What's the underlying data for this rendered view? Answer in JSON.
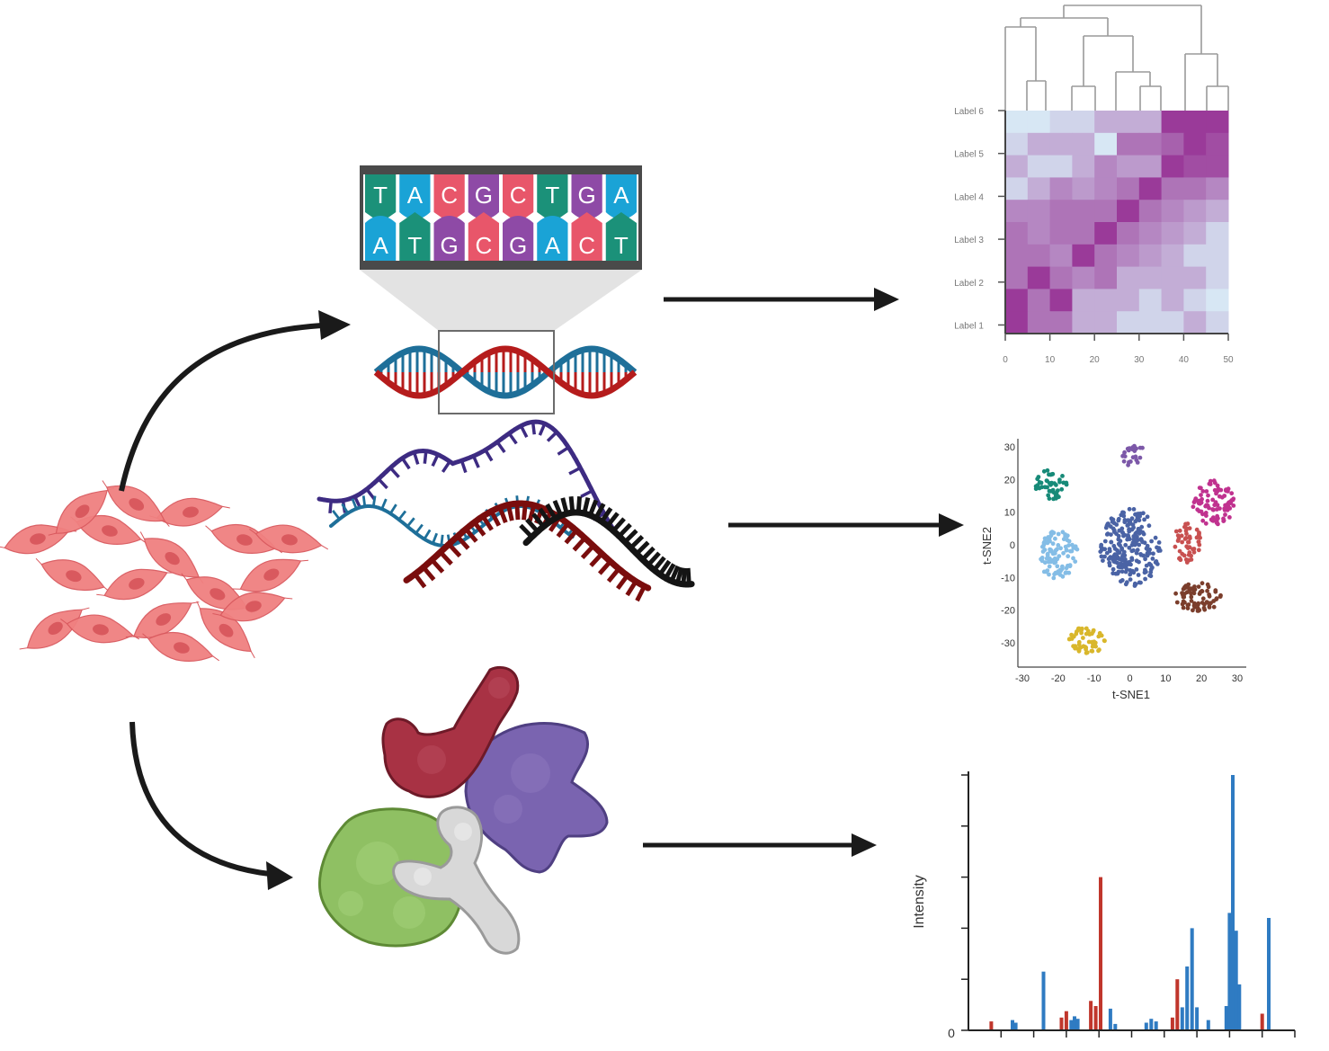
{
  "colors": {
    "arrow": "#1a1a1a",
    "cell_fill": "#f08080",
    "cell_stroke": "#d9595e",
    "cell_nucleus": "#d9595e",
    "base_A": "#1aa3d6",
    "base_T": "#1b9179",
    "base_G": "#8e4aa6",
    "base_C": "#e8566a",
    "dna_red": "#b51c1c",
    "dna_blue": "#1e6f99",
    "rna_purple": "#3d2b82",
    "rna_teal": "#1e6f99",
    "rna_darkred": "#7a0d0d",
    "rna_black": "#141414",
    "protein_red": "#a83244",
    "protein_purple": "#7a64b0",
    "protein_green": "#8fc063",
    "protein_gray": "#d8d8d8",
    "heat_low": "#d7e7f4",
    "heat_high": "#93278f",
    "ms_blue": "#2f7bc2",
    "ms_red": "#c0362c"
  },
  "icons": [
    "cell-culture-icon",
    "dna-sequence-icon",
    "dna-helix-icon",
    "rna-strands-icon",
    "protein-complex-icon"
  ],
  "dna_sequence": {
    "top": [
      "T",
      "A",
      "C",
      "G",
      "C",
      "T",
      "G",
      "A"
    ],
    "bottom": [
      "A",
      "T",
      "G",
      "C",
      "G",
      "A",
      "C",
      "T"
    ]
  },
  "heatmap": {
    "row_labels": [
      "Label 6",
      "Label 5",
      "Label 4",
      "Label 3",
      "Label 2",
      "Label 1"
    ],
    "x_ticks": [
      "0",
      "10",
      "20",
      "30",
      "40",
      "50"
    ],
    "values": [
      [
        0.0,
        0.0,
        0.1,
        0.1,
        0.3,
        0.3,
        0.3,
        0.9,
        0.9,
        0.9
      ],
      [
        0.1,
        0.3,
        0.3,
        0.3,
        0.0,
        0.6,
        0.6,
        0.7,
        0.9,
        0.8
      ],
      [
        0.3,
        0.1,
        0.1,
        0.3,
        0.5,
        0.4,
        0.4,
        0.9,
        0.8,
        0.8
      ],
      [
        0.1,
        0.3,
        0.5,
        0.4,
        0.5,
        0.6,
        0.9,
        0.6,
        0.6,
        0.5
      ],
      [
        0.5,
        0.5,
        0.6,
        0.6,
        0.6,
        0.9,
        0.6,
        0.5,
        0.4,
        0.3
      ],
      [
        0.6,
        0.5,
        0.6,
        0.6,
        0.9,
        0.6,
        0.5,
        0.4,
        0.3,
        0.1
      ],
      [
        0.6,
        0.6,
        0.5,
        0.9,
        0.6,
        0.5,
        0.4,
        0.3,
        0.1,
        0.1
      ],
      [
        0.6,
        0.9,
        0.6,
        0.5,
        0.6,
        0.3,
        0.3,
        0.3,
        0.3,
        0.1
      ],
      [
        0.9,
        0.6,
        0.9,
        0.3,
        0.3,
        0.3,
        0.1,
        0.3,
        0.1,
        0.0
      ],
      [
        0.9,
        0.6,
        0.6,
        0.3,
        0.3,
        0.1,
        0.1,
        0.1,
        0.3,
        0.1
      ]
    ]
  },
  "tsne": {
    "xlabel": "t-SNE1",
    "ylabel": "t-SNE2",
    "x_ticks": [
      "-30",
      "-20",
      "-10",
      "0",
      "10",
      "20",
      "30"
    ],
    "y_ticks": [
      "30",
      "20",
      "10",
      "0",
      "-10",
      "-20",
      "-30"
    ],
    "clusters": [
      {
        "color": "#178a78",
        "cx": -22,
        "cy": 18.5,
        "rx": 4.5,
        "ry": 4.5,
        "n": 45
      },
      {
        "color": "#7c58a8",
        "cx": 1.5,
        "cy": 27,
        "rx": 3.5,
        "ry": 3.5,
        "n": 25
      },
      {
        "color": "#c0328f",
        "cx": 23.5,
        "cy": 13,
        "rx": 6,
        "ry": 7,
        "n": 90
      },
      {
        "color": "#c85050",
        "cx": 16,
        "cy": 0.5,
        "rx": 4,
        "ry": 6,
        "n": 55
      },
      {
        "color": "#7b3e2c",
        "cx": 19,
        "cy": -16,
        "rx": 6.5,
        "ry": 4.5,
        "n": 70
      },
      {
        "color": "#84bde6",
        "cx": -20,
        "cy": -3,
        "rx": 5.5,
        "ry": 7.5,
        "n": 100
      },
      {
        "color": "#d9b72b",
        "cx": -12,
        "cy": -29,
        "rx": 5,
        "ry": 4.5,
        "n": 55
      },
      {
        "color": "#4a63a5",
        "cx": 0,
        "cy": -1,
        "rx": 8.5,
        "ry": 12,
        "n": 230
      }
    ]
  },
  "mass_spec": {
    "ylabel": "Intensity",
    "y_zero_label": "0",
    "peaks": [
      {
        "x": 0.07,
        "h": 0.035,
        "c": "red"
      },
      {
        "x": 0.135,
        "h": 0.04,
        "c": "blue"
      },
      {
        "x": 0.145,
        "h": 0.03,
        "c": "blue"
      },
      {
        "x": 0.23,
        "h": 0.23,
        "c": "blue"
      },
      {
        "x": 0.285,
        "h": 0.05,
        "c": "red"
      },
      {
        "x": 0.3,
        "h": 0.075,
        "c": "red"
      },
      {
        "x": 0.315,
        "h": 0.04,
        "c": "blue"
      },
      {
        "x": 0.325,
        "h": 0.055,
        "c": "blue"
      },
      {
        "x": 0.335,
        "h": 0.045,
        "c": "blue"
      },
      {
        "x": 0.375,
        "h": 0.115,
        "c": "red"
      },
      {
        "x": 0.39,
        "h": 0.095,
        "c": "red"
      },
      {
        "x": 0.405,
        "h": 0.6,
        "c": "red"
      },
      {
        "x": 0.435,
        "h": 0.085,
        "c": "blue"
      },
      {
        "x": 0.45,
        "h": 0.025,
        "c": "blue"
      },
      {
        "x": 0.545,
        "h": 0.03,
        "c": "blue"
      },
      {
        "x": 0.56,
        "h": 0.045,
        "c": "blue"
      },
      {
        "x": 0.575,
        "h": 0.035,
        "c": "blue"
      },
      {
        "x": 0.625,
        "h": 0.05,
        "c": "red"
      },
      {
        "x": 0.64,
        "h": 0.2,
        "c": "red"
      },
      {
        "x": 0.655,
        "h": 0.09,
        "c": "blue"
      },
      {
        "x": 0.67,
        "h": 0.25,
        "c": "blue"
      },
      {
        "x": 0.685,
        "h": 0.4,
        "c": "blue"
      },
      {
        "x": 0.7,
        "h": 0.09,
        "c": "blue"
      },
      {
        "x": 0.735,
        "h": 0.04,
        "c": "blue"
      },
      {
        "x": 0.79,
        "h": 0.095,
        "c": "blue"
      },
      {
        "x": 0.8,
        "h": 0.46,
        "c": "blue"
      },
      {
        "x": 0.81,
        "h": 1.0,
        "c": "blue"
      },
      {
        "x": 0.82,
        "h": 0.39,
        "c": "blue"
      },
      {
        "x": 0.83,
        "h": 0.18,
        "c": "blue"
      },
      {
        "x": 0.9,
        "h": 0.065,
        "c": "red"
      },
      {
        "x": 0.92,
        "h": 0.44,
        "c": "blue"
      }
    ]
  }
}
